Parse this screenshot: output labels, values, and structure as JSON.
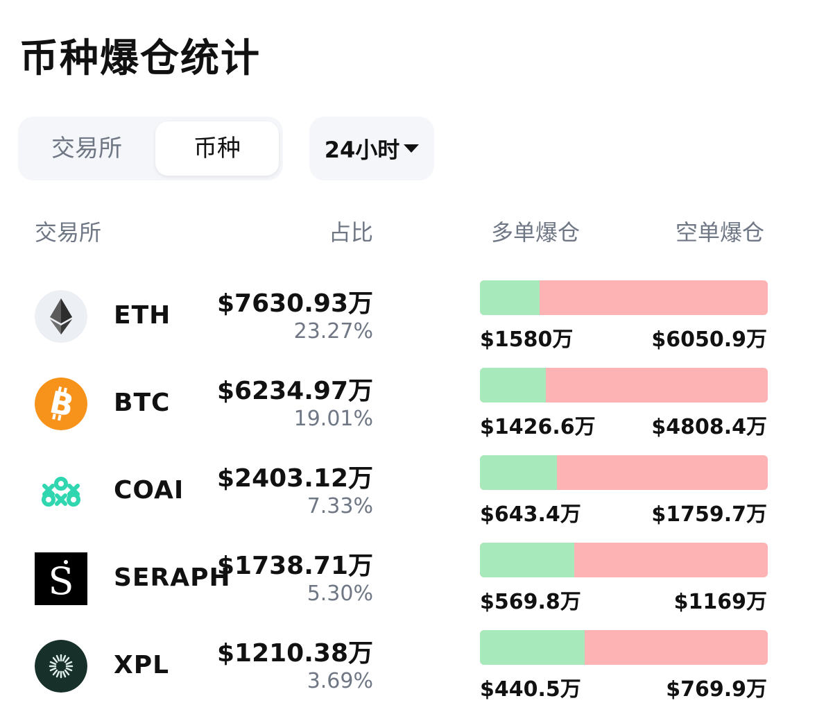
{
  "title": "币种爆仓统计",
  "tabs": [
    {
      "label": "交易所",
      "active": false
    },
    {
      "label": "币种",
      "active": true
    }
  ],
  "period": {
    "label": "24小时"
  },
  "columns": {
    "name": "交易所",
    "share": "占比",
    "long": "多单爆仓",
    "short": "空单爆仓"
  },
  "colors": {
    "long_bar": "#a8e9bc",
    "short_bar": "#fdb3b4",
    "muted_text": "#6f7785"
  },
  "rows": [
    {
      "symbol": "ETH",
      "icon": "ethereum-icon",
      "amount": "$7630.93万",
      "percent": "23.27%",
      "long": "$1580万",
      "short": "$6050.9万",
      "long_ratio": 0.207
    },
    {
      "symbol": "BTC",
      "icon": "bitcoin-icon",
      "amount": "$6234.97万",
      "percent": "19.01%",
      "long": "$1426.6万",
      "short": "$4808.4万",
      "long_ratio": 0.229
    },
    {
      "symbol": "COAI",
      "icon": "coai-icon",
      "amount": "$2403.12万",
      "percent": "7.33%",
      "long": "$643.4万",
      "short": "$1759.7万",
      "long_ratio": 0.268
    },
    {
      "symbol": "SERAPH",
      "icon": "seraph-icon",
      "amount": "$1738.71万",
      "percent": "5.30%",
      "long": "$569.8万",
      "short": "$1169万",
      "long_ratio": 0.328
    },
    {
      "symbol": "XPL",
      "icon": "xpl-icon",
      "amount": "$1210.38万",
      "percent": "3.69%",
      "long": "$440.5万",
      "short": "$769.9万",
      "long_ratio": 0.364
    }
  ]
}
